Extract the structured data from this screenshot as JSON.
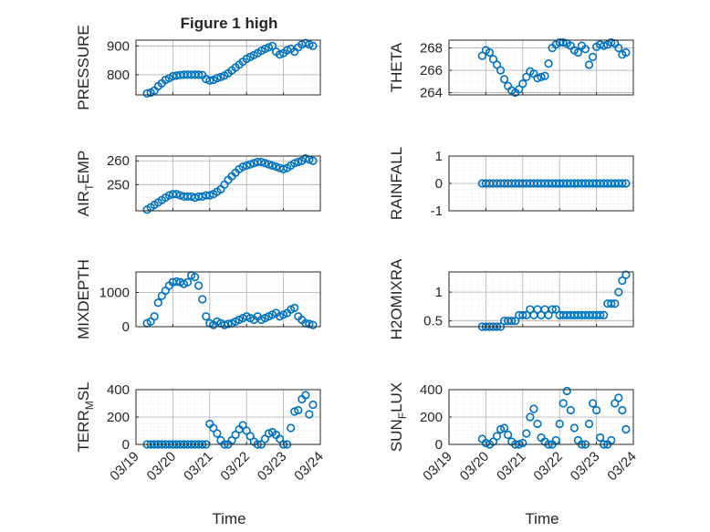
{
  "figure": {
    "title": "Figure 1 high",
    "x_label": "Time",
    "x_ticks": [
      "03/19",
      "03/20",
      "03/21",
      "03/22",
      "03/23",
      "03/24"
    ]
  },
  "colors": {
    "marker": "#0072BD",
    "axis": "#262626",
    "grid": "#b0b0b0",
    "background": "#ffffff"
  },
  "chart_data": [
    {
      "type": "scatter",
      "id": "pressure",
      "ylabel": "PRESSURE",
      "ylim": [
        730,
        920
      ],
      "yticks": [
        800,
        900
      ],
      "xlim": [
        0,
        5
      ],
      "grid": true,
      "x": [
        0.3,
        0.4,
        0.5,
        0.6,
        0.7,
        0.8,
        0.9,
        1.0,
        1.1,
        1.2,
        1.3,
        1.4,
        1.5,
        1.6,
        1.7,
        1.8,
        1.9,
        2.0,
        2.1,
        2.2,
        2.3,
        2.4,
        2.5,
        2.6,
        2.7,
        2.8,
        2.9,
        3.0,
        3.1,
        3.2,
        3.3,
        3.4,
        3.5,
        3.6,
        3.7,
        3.8,
        3.9,
        4.0,
        4.1,
        4.2,
        4.3,
        4.4,
        4.5,
        4.6,
        4.7,
        4.8
      ],
      "y": [
        735,
        738,
        745,
        760,
        770,
        782,
        788,
        795,
        797,
        799,
        800,
        800,
        800,
        800,
        800,
        799,
        785,
        780,
        782,
        788,
        792,
        797,
        805,
        815,
        825,
        835,
        845,
        855,
        862,
        868,
        875,
        883,
        890,
        895,
        900,
        880,
        870,
        875,
        885,
        890,
        880,
        895,
        905,
        910,
        905,
        900
      ]
    },
    {
      "type": "scatter",
      "id": "theta",
      "ylabel": "THETA",
      "ylim": [
        263.8,
        268.7
      ],
      "yticks": [
        264,
        266,
        268
      ],
      "xlim": [
        0,
        5
      ],
      "grid": true,
      "x": [
        0.9,
        1.0,
        1.1,
        1.2,
        1.3,
        1.4,
        1.5,
        1.6,
        1.7,
        1.8,
        1.9,
        2.0,
        2.1,
        2.2,
        2.3,
        2.4,
        2.5,
        2.6,
        2.7,
        2.8,
        2.9,
        3.0,
        3.1,
        3.2,
        3.3,
        3.4,
        3.5,
        3.6,
        3.7,
        3.8,
        3.9,
        4.0,
        4.1,
        4.2,
        4.3,
        4.4,
        4.5,
        4.6,
        4.7,
        4.8
      ],
      "y": [
        267.3,
        267.8,
        267.6,
        267.0,
        266.5,
        266.0,
        265.2,
        264.6,
        264.2,
        264.0,
        264.3,
        264.8,
        265.4,
        265.9,
        265.7,
        265.3,
        265.4,
        265.5,
        266.6,
        268.0,
        268.3,
        268.5,
        268.5,
        268.4,
        268.2,
        267.8,
        267.6,
        268.2,
        267.9,
        266.5,
        267.2,
        268.1,
        268.3,
        268.2,
        268.3,
        268.5,
        268.4,
        268.0,
        267.4,
        267.6
      ]
    },
    {
      "type": "scatter",
      "id": "air_temp",
      "ylabel": "AIR",
      "ylabel_sub": "T",
      "ylabel_rest": "EMP",
      "ylim": [
        239,
        262
      ],
      "yticks": [
        250,
        260
      ],
      "xlim": [
        0,
        5
      ],
      "grid": true,
      "x": [
        0.3,
        0.4,
        0.5,
        0.6,
        0.7,
        0.8,
        0.9,
        1.0,
        1.1,
        1.2,
        1.3,
        1.4,
        1.5,
        1.6,
        1.7,
        1.8,
        1.9,
        2.0,
        2.1,
        2.2,
        2.3,
        2.4,
        2.5,
        2.6,
        2.7,
        2.8,
        2.9,
        3.0,
        3.1,
        3.2,
        3.3,
        3.4,
        3.5,
        3.6,
        3.7,
        3.8,
        3.9,
        4.0,
        4.1,
        4.2,
        4.3,
        4.4,
        4.5,
        4.6,
        4.7,
        4.8
      ],
      "y": [
        239.5,
        240.5,
        241.5,
        242.5,
        243.5,
        244.5,
        245.5,
        246,
        246,
        245.5,
        245,
        245,
        245,
        244.5,
        245,
        245,
        245.5,
        245.5,
        246,
        247,
        248,
        250,
        252,
        253.5,
        255,
        256.5,
        257.5,
        258,
        258.5,
        259,
        259.5,
        259.5,
        259,
        258.5,
        258,
        257.5,
        257,
        256.5,
        257,
        258,
        259,
        259.5,
        260,
        261,
        260.5,
        260
      ]
    },
    {
      "type": "scatter",
      "id": "rainfall",
      "ylabel": "RAINFALL",
      "ylim": [
        -1,
        1
      ],
      "yticks": [
        -1,
        0,
        1
      ],
      "xlim": [
        0,
        5
      ],
      "grid": true,
      "x": [
        0.9,
        1.0,
        1.1,
        1.2,
        1.3,
        1.4,
        1.5,
        1.6,
        1.7,
        1.8,
        1.9,
        2.0,
        2.1,
        2.2,
        2.3,
        2.4,
        2.5,
        2.6,
        2.7,
        2.8,
        2.9,
        3.0,
        3.1,
        3.2,
        3.3,
        3.4,
        3.5,
        3.6,
        3.7,
        3.8,
        3.9,
        4.0,
        4.1,
        4.2,
        4.3,
        4.4,
        4.5,
        4.6,
        4.7,
        4.8
      ],
      "y": [
        0,
        0,
        0,
        0,
        0,
        0,
        0,
        0,
        0,
        0,
        0,
        0,
        0,
        0,
        0,
        0,
        0,
        0,
        0,
        0,
        0,
        0,
        0,
        0,
        0,
        0,
        0,
        0,
        0,
        0,
        0,
        0,
        0,
        0,
        0,
        0,
        0,
        0,
        0,
        0
      ]
    },
    {
      "type": "scatter",
      "id": "mixdepth",
      "ylabel": "MIXDEPTH",
      "ylim": [
        0,
        1600
      ],
      "yticks": [
        0,
        1000
      ],
      "xlim": [
        0,
        5
      ],
      "grid": true,
      "x": [
        0.3,
        0.4,
        0.5,
        0.6,
        0.7,
        0.8,
        0.9,
        1.0,
        1.1,
        1.2,
        1.3,
        1.4,
        1.5,
        1.6,
        1.7,
        1.8,
        1.9,
        2.0,
        2.1,
        2.2,
        2.3,
        2.4,
        2.5,
        2.6,
        2.7,
        2.8,
        2.9,
        3.0,
        3.1,
        3.2,
        3.3,
        3.4,
        3.5,
        3.6,
        3.7,
        3.8,
        3.9,
        4.0,
        4.1,
        4.2,
        4.3,
        4.4,
        4.5,
        4.6,
        4.7,
        4.8
      ],
      "y": [
        100,
        150,
        300,
        700,
        900,
        1050,
        1200,
        1300,
        1320,
        1300,
        1250,
        1300,
        1500,
        1450,
        1200,
        800,
        300,
        100,
        50,
        150,
        100,
        50,
        80,
        100,
        150,
        200,
        250,
        300,
        250,
        200,
        300,
        200,
        250,
        300,
        350,
        400,
        300,
        350,
        400,
        500,
        550,
        300,
        200,
        100,
        80,
        50
      ]
    },
    {
      "type": "scatter",
      "id": "h2omixra",
      "ylabel": "H2OMIXRA",
      "ylim": [
        0.4,
        1.35
      ],
      "yticks": [
        0.5,
        1
      ],
      "xlim": [
        0,
        5
      ],
      "grid": true,
      "x": [
        0.9,
        1.0,
        1.1,
        1.2,
        1.3,
        1.4,
        1.5,
        1.6,
        1.7,
        1.8,
        1.9,
        2.0,
        2.1,
        2.2,
        2.3,
        2.4,
        2.5,
        2.6,
        2.7,
        2.8,
        2.9,
        3.0,
        3.1,
        3.2,
        3.3,
        3.4,
        3.5,
        3.6,
        3.7,
        3.8,
        3.9,
        4.0,
        4.1,
        4.2,
        4.3,
        4.4,
        4.5,
        4.6,
        4.7,
        4.8
      ],
      "y": [
        0.4,
        0.4,
        0.4,
        0.4,
        0.4,
        0.4,
        0.5,
        0.5,
        0.5,
        0.5,
        0.6,
        0.6,
        0.6,
        0.7,
        0.6,
        0.7,
        0.6,
        0.7,
        0.6,
        0.7,
        0.7,
        0.6,
        0.6,
        0.6,
        0.6,
        0.6,
        0.6,
        0.6,
        0.6,
        0.6,
        0.6,
        0.6,
        0.6,
        0.6,
        0.8,
        0.8,
        0.8,
        1.0,
        1.2,
        1.3
      ]
    },
    {
      "type": "scatter",
      "id": "terr_msl",
      "ylabel": "TERR",
      "ylabel_sub": "M",
      "ylabel_rest": "SL",
      "ylim": [
        0,
        400
      ],
      "yticks": [
        0,
        200,
        400
      ],
      "xlim": [
        0,
        5
      ],
      "grid": true,
      "x": [
        0.3,
        0.4,
        0.5,
        0.6,
        0.7,
        0.8,
        0.9,
        1.0,
        1.1,
        1.2,
        1.3,
        1.4,
        1.5,
        1.6,
        1.7,
        1.8,
        1.9,
        2.0,
        2.1,
        2.2,
        2.3,
        2.4,
        2.5,
        2.6,
        2.7,
        2.8,
        2.9,
        3.0,
        3.1,
        3.2,
        3.3,
        3.4,
        3.5,
        3.6,
        3.7,
        3.8,
        3.9,
        4.0,
        4.1,
        4.2,
        4.3,
        4.4,
        4.5,
        4.6,
        4.7,
        4.8
      ],
      "y": [
        0,
        0,
        0,
        0,
        0,
        0,
        0,
        0,
        0,
        0,
        0,
        0,
        0,
        0,
        0,
        0,
        0,
        150,
        120,
        80,
        30,
        0,
        0,
        30,
        70,
        110,
        140,
        100,
        60,
        20,
        0,
        0,
        40,
        80,
        90,
        70,
        40,
        0,
        0,
        120,
        240,
        250,
        330,
        360,
        220,
        290
      ]
    },
    {
      "type": "scatter",
      "id": "sun_flux",
      "ylabel": "SUN",
      "ylabel_sub": "F",
      "ylabel_rest": "LUX",
      "ylim": [
        0,
        400
      ],
      "yticks": [
        0,
        200,
        400
      ],
      "xlim": [
        0,
        5
      ],
      "grid": true,
      "x": [
        0.9,
        1.0,
        1.1,
        1.2,
        1.3,
        1.4,
        1.5,
        1.6,
        1.7,
        1.8,
        1.9,
        2.0,
        2.1,
        2.2,
        2.3,
        2.4,
        2.5,
        2.6,
        2.7,
        2.8,
        2.9,
        3.0,
        3.1,
        3.2,
        3.3,
        3.4,
        3.5,
        3.6,
        3.7,
        3.8,
        3.9,
        4.0,
        4.1,
        4.2,
        4.3,
        4.4,
        4.5,
        4.6,
        4.7,
        4.8
      ],
      "y": [
        40,
        10,
        0,
        20,
        60,
        110,
        120,
        70,
        20,
        0,
        0,
        10,
        80,
        200,
        260,
        150,
        50,
        20,
        0,
        0,
        30,
        150,
        300,
        390,
        250,
        120,
        30,
        0,
        0,
        150,
        300,
        250,
        50,
        0,
        0,
        30,
        300,
        340,
        250,
        110
      ]
    }
  ]
}
